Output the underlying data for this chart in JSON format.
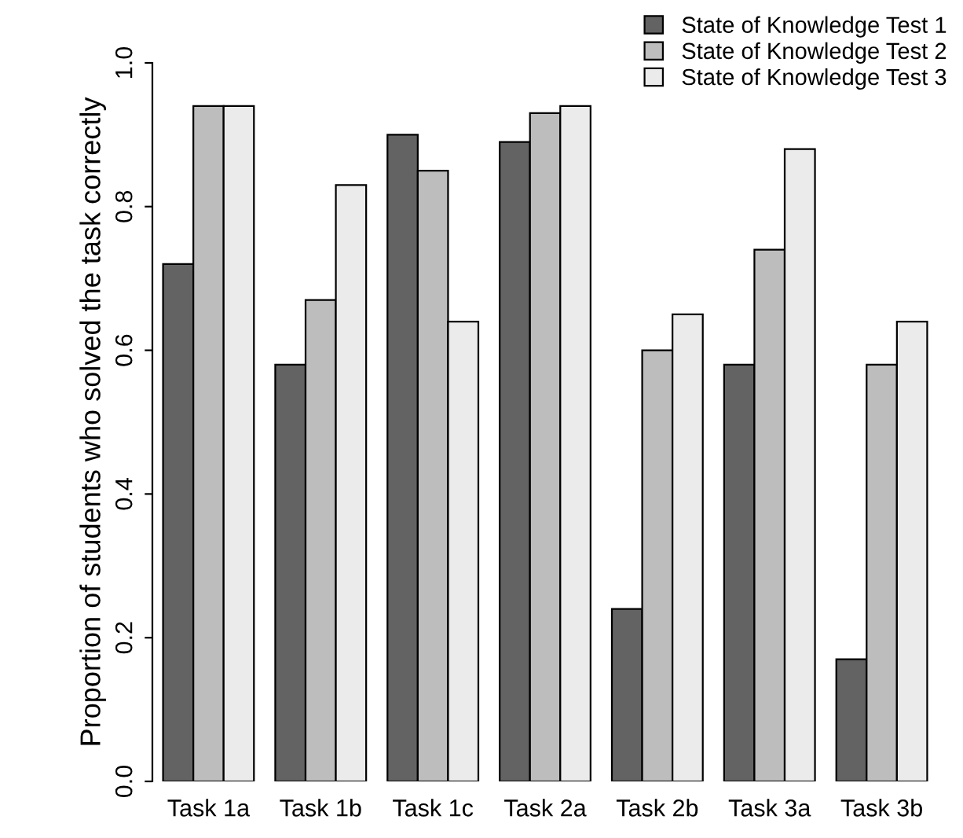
{
  "chart_data": {
    "type": "bar",
    "ylabel": "Proportion of students who solved the task correctly",
    "categories": [
      "Task 1a",
      "Task 1b",
      "Task 1c",
      "Task 2a",
      "Task 2b",
      "Task 3a",
      "Task 3b"
    ],
    "series": [
      {
        "name": "State of Knowledge Test 1",
        "color": "#636363",
        "values": [
          0.72,
          0.58,
          0.9,
          0.89,
          0.24,
          0.58,
          0.17
        ]
      },
      {
        "name": "State of Knowledge Test 2",
        "color": "#bdbdbd",
        "values": [
          0.94,
          0.67,
          0.85,
          0.93,
          0.6,
          0.74,
          0.58
        ]
      },
      {
        "name": "State of Knowledge Test 3",
        "color": "#ebebeb",
        "values": [
          0.94,
          0.83,
          0.64,
          0.94,
          0.65,
          0.88,
          0.64
        ]
      }
    ],
    "ylim": [
      0,
      1
    ],
    "yticks": [
      {
        "value": 0,
        "label": "0.0"
      },
      {
        "value": 0.2,
        "label": "0.2"
      },
      {
        "value": 0.4,
        "label": "0.4"
      },
      {
        "value": 0.6,
        "label": "0.6"
      },
      {
        "value": 0.8,
        "label": "0.8"
      },
      {
        "value": 1,
        "label": "1.0"
      }
    ],
    "grid": false,
    "legend": "top right"
  }
}
